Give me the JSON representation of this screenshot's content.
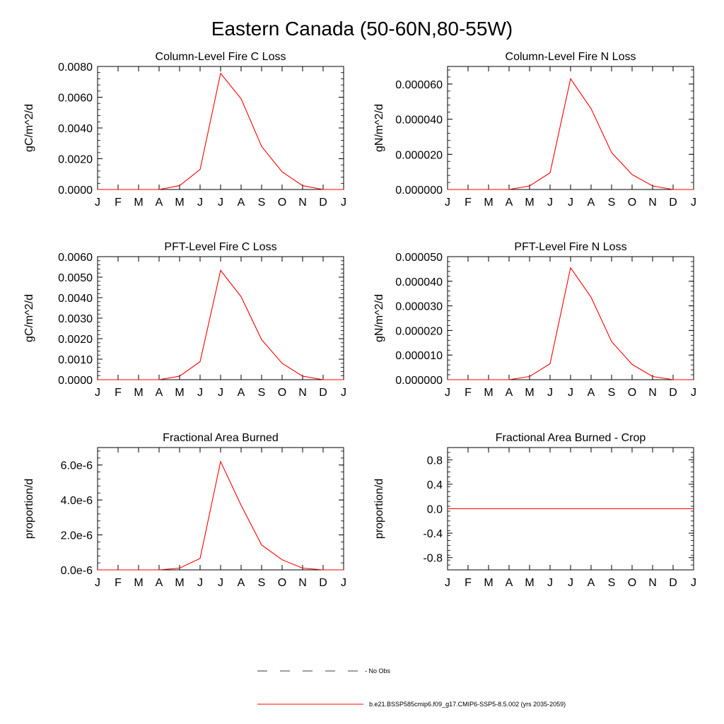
{
  "figure_title": "Eastern Canada (50-60N,80-55W)",
  "legend": {
    "no_obs_label": "- No Obs",
    "model_label": "b.e21.BSSP585cmip6.f09_g17.CMIP6-SSP5-8.5.002 (yrs 2035-2059)",
    "model_color": "#ff0000",
    "obs_color": "#000000"
  },
  "chart_data": [
    {
      "type": "line",
      "title": "Column-Level Fire C Loss",
      "ylabel": "gC/m^2/d",
      "xlabel": "",
      "x": [
        "J",
        "F",
        "M",
        "A",
        "M",
        "J",
        "J",
        "A",
        "S",
        "O",
        "N",
        "D",
        "J"
      ],
      "ylim": [
        0,
        0.008
      ],
      "yticks": [
        0,
        0.002,
        0.004,
        0.006,
        0.008
      ],
      "ytick_labels": [
        "0.0000",
        "0.0020",
        "0.0040",
        "0.0060",
        "0.0080"
      ],
      "series": [
        {
          "values": [
            0,
            0,
            0,
            0,
            0.00025,
            0.0013,
            0.00755,
            0.0059,
            0.0028,
            0.00115,
            0.00025,
            0,
            0
          ],
          "color": "#ff0000"
        }
      ]
    },
    {
      "type": "line",
      "title": "Column-Level Fire N Loss",
      "ylabel": "gN/m^2/d",
      "xlabel": "",
      "x": [
        "J",
        "F",
        "M",
        "A",
        "M",
        "J",
        "J",
        "A",
        "S",
        "O",
        "N",
        "D",
        "J"
      ],
      "ylim": [
        0,
        7e-05
      ],
      "yticks": [
        0,
        2e-05,
        4e-05,
        6e-05
      ],
      "ytick_labels": [
        "0.000000",
        "0.000020",
        "0.000040",
        "0.000060"
      ],
      "series": [
        {
          "values": [
            0,
            0,
            0,
            0,
            2e-06,
            9.5e-06,
            6.3e-05,
            4.6e-05,
            2.1e-05,
            8.5e-06,
            2e-06,
            0,
            0
          ],
          "color": "#ff0000"
        }
      ]
    },
    {
      "type": "line",
      "title": "PFT-Level Fire C Loss",
      "ylabel": "gC/m^2/d",
      "xlabel": "",
      "x": [
        "J",
        "F",
        "M",
        "A",
        "M",
        "J",
        "J",
        "A",
        "S",
        "O",
        "N",
        "D",
        "J"
      ],
      "ylim": [
        0,
        0.006
      ],
      "yticks": [
        0,
        0.001,
        0.002,
        0.003,
        0.004,
        0.005,
        0.006
      ],
      "ytick_labels": [
        "0.0000",
        "0.0010",
        "0.0020",
        "0.0030",
        "0.0040",
        "0.0050",
        "0.0060"
      ],
      "series": [
        {
          "values": [
            0,
            0,
            0,
            0,
            0.00017,
            0.00088,
            0.00533,
            0.00405,
            0.00195,
            0.0008,
            0.00017,
            0,
            0
          ],
          "color": "#ff0000"
        }
      ]
    },
    {
      "type": "line",
      "title": "PFT-Level Fire N Loss",
      "ylabel": "gN/m^2/d",
      "xlabel": "",
      "x": [
        "J",
        "F",
        "M",
        "A",
        "M",
        "J",
        "J",
        "A",
        "S",
        "O",
        "N",
        "D",
        "J"
      ],
      "ylim": [
        0,
        5e-05
      ],
      "yticks": [
        0,
        1e-05,
        2e-05,
        3e-05,
        4e-05,
        5e-05
      ],
      "ytick_labels": [
        "0.000000",
        "0.000010",
        "0.000020",
        "0.000030",
        "0.000040",
        "0.000050"
      ],
      "series": [
        {
          "values": [
            0,
            0,
            0,
            0,
            1.3e-06,
            6.5e-06,
            4.55e-05,
            3.35e-05,
            1.55e-05,
            6.2e-06,
            1.3e-06,
            0,
            0
          ],
          "color": "#ff0000"
        }
      ]
    },
    {
      "type": "line",
      "title": "Fractional Area Burned",
      "ylabel": "proportion/d",
      "xlabel": "",
      "x": [
        "J",
        "F",
        "M",
        "A",
        "M",
        "J",
        "J",
        "A",
        "S",
        "O",
        "N",
        "D",
        "J"
      ],
      "ylim": [
        0,
        7e-06
      ],
      "yticks": [
        0,
        2e-06,
        4e-06,
        6e-06
      ],
      "ytick_labels": [
        "0.0e-6",
        "2.0e-6",
        "4.0e-6",
        "6.0e-6"
      ],
      "series": [
        {
          "values": [
            0,
            0,
            0,
            0,
            1e-07,
            6.5e-07,
            6.2e-06,
            3.7e-06,
            1.43e-06,
            5.8e-07,
            1e-07,
            0,
            0
          ],
          "color": "#ff0000"
        }
      ]
    },
    {
      "type": "line",
      "title": "Fractional Area Burned - Crop",
      "ylabel": "proportion/d",
      "xlabel": "",
      "x": [
        "J",
        "F",
        "M",
        "A",
        "M",
        "J",
        "J",
        "A",
        "S",
        "O",
        "N",
        "D",
        "J"
      ],
      "ylim": [
        -1,
        1
      ],
      "yticks": [
        -0.8,
        -0.4,
        0,
        0.4,
        0.8
      ],
      "ytick_labels": [
        "-0.8",
        "-0.4",
        "0.0",
        "0.4",
        "0.8"
      ],
      "series": [
        {
          "values": [
            0,
            0,
            0,
            0,
            0,
            0,
            0,
            0,
            0,
            0,
            0,
            0,
            0
          ],
          "color": "#ff0000"
        }
      ]
    }
  ]
}
